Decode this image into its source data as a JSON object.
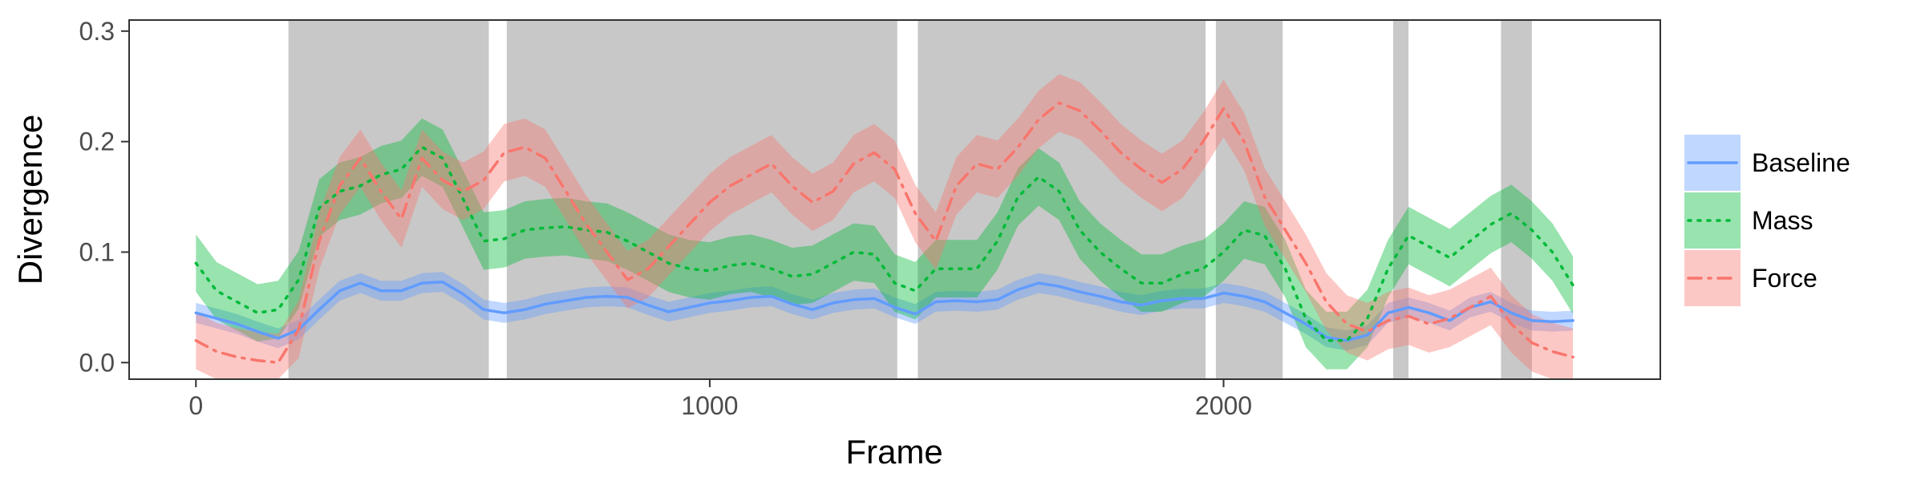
{
  "chart_data": {
    "type": "line",
    "title": "",
    "xlabel": "Frame",
    "ylabel": "Divergence",
    "xlim": [
      -130,
      2850
    ],
    "ylim": [
      -0.015,
      0.31
    ],
    "x_ticks": [
      0,
      1000,
      2000
    ],
    "x_tick_labels": [
      "0",
      "1000",
      "2000"
    ],
    "y_ticks": [
      0.0,
      0.1,
      0.2,
      0.3
    ],
    "y_tick_labels": [
      "0.0",
      "0.1",
      "0.2",
      "0.3"
    ],
    "grid": false,
    "legend_position": "right",
    "shaded_regions": [
      [
        180,
        570
      ],
      [
        605,
        1365
      ],
      [
        1405,
        1965
      ],
      [
        1985,
        2115
      ],
      [
        2330,
        2360
      ],
      [
        2540,
        2600
      ]
    ],
    "x": [
      0,
      40,
      80,
      120,
      160,
      200,
      240,
      280,
      320,
      360,
      400,
      440,
      480,
      520,
      560,
      600,
      640,
      680,
      720,
      760,
      800,
      840,
      880,
      920,
      960,
      1000,
      1040,
      1080,
      1120,
      1160,
      1200,
      1240,
      1280,
      1320,
      1360,
      1400,
      1440,
      1480,
      1520,
      1560,
      1600,
      1640,
      1680,
      1720,
      1760,
      1800,
      1840,
      1880,
      1920,
      1960,
      2000,
      2040,
      2080,
      2120,
      2160,
      2200,
      2240,
      2280,
      2320,
      2360,
      2400,
      2440,
      2480,
      2520,
      2560,
      2600,
      2640,
      2680
    ],
    "series": [
      {
        "name": "Baseline",
        "color": "#619CFF",
        "dash": "solid",
        "values": [
          0.045,
          0.04,
          0.035,
          0.028,
          0.022,
          0.03,
          0.048,
          0.065,
          0.072,
          0.065,
          0.065,
          0.072,
          0.073,
          0.062,
          0.048,
          0.045,
          0.048,
          0.053,
          0.056,
          0.059,
          0.06,
          0.059,
          0.052,
          0.046,
          0.05,
          0.054,
          0.056,
          0.059,
          0.06,
          0.053,
          0.048,
          0.054,
          0.057,
          0.058,
          0.05,
          0.044,
          0.055,
          0.056,
          0.055,
          0.057,
          0.066,
          0.072,
          0.069,
          0.064,
          0.06,
          0.055,
          0.052,
          0.056,
          0.058,
          0.058,
          0.063,
          0.06,
          0.055,
          0.045,
          0.035,
          0.023,
          0.02,
          0.025,
          0.045,
          0.05,
          0.045,
          0.038,
          0.05,
          0.055,
          0.045,
          0.038,
          0.037,
          0.038
        ],
        "band": 0.009
      },
      {
        "name": "Mass",
        "color": "#00BA38",
        "dash": "dotted",
        "values": [
          0.09,
          0.065,
          0.055,
          0.045,
          0.048,
          0.075,
          0.14,
          0.155,
          0.16,
          0.17,
          0.175,
          0.195,
          0.185,
          0.148,
          0.11,
          0.112,
          0.12,
          0.122,
          0.123,
          0.12,
          0.118,
          0.11,
          0.1,
          0.09,
          0.085,
          0.083,
          0.088,
          0.09,
          0.085,
          0.078,
          0.08,
          0.09,
          0.1,
          0.098,
          0.072,
          0.065,
          0.085,
          0.085,
          0.085,
          0.11,
          0.15,
          0.168,
          0.155,
          0.12,
          0.1,
          0.085,
          0.072,
          0.072,
          0.08,
          0.085,
          0.1,
          0.12,
          0.115,
          0.085,
          0.04,
          0.02,
          0.02,
          0.04,
          0.085,
          0.115,
          0.105,
          0.095,
          0.11,
          0.125,
          0.135,
          0.12,
          0.1,
          0.07
        ],
        "band": 0.026
      },
      {
        "name": "Force",
        "color": "#F8766D",
        "dash": "dashdot",
        "values": [
          0.02,
          0.01,
          0.005,
          0.002,
          0.0,
          0.03,
          0.11,
          0.16,
          0.185,
          0.155,
          0.13,
          0.185,
          0.165,
          0.155,
          0.165,
          0.19,
          0.195,
          0.185,
          0.155,
          0.125,
          0.1,
          0.075,
          0.085,
          0.105,
          0.125,
          0.145,
          0.16,
          0.17,
          0.18,
          0.16,
          0.145,
          0.155,
          0.18,
          0.19,
          0.175,
          0.135,
          0.11,
          0.16,
          0.18,
          0.175,
          0.195,
          0.22,
          0.235,
          0.228,
          0.21,
          0.19,
          0.175,
          0.163,
          0.175,
          0.2,
          0.23,
          0.2,
          0.15,
          0.12,
          0.09,
          0.055,
          0.035,
          0.028,
          0.038,
          0.042,
          0.035,
          0.04,
          0.05,
          0.06,
          0.035,
          0.018,
          0.01,
          0.005
        ],
        "band": 0.026
      }
    ],
    "colors": {
      "shade": "#C8C8C8",
      "panel_border": "#333333",
      "baseline_fill": "#619CFF",
      "mass_fill": "#00BA38",
      "force_fill": "#F8766D"
    }
  }
}
